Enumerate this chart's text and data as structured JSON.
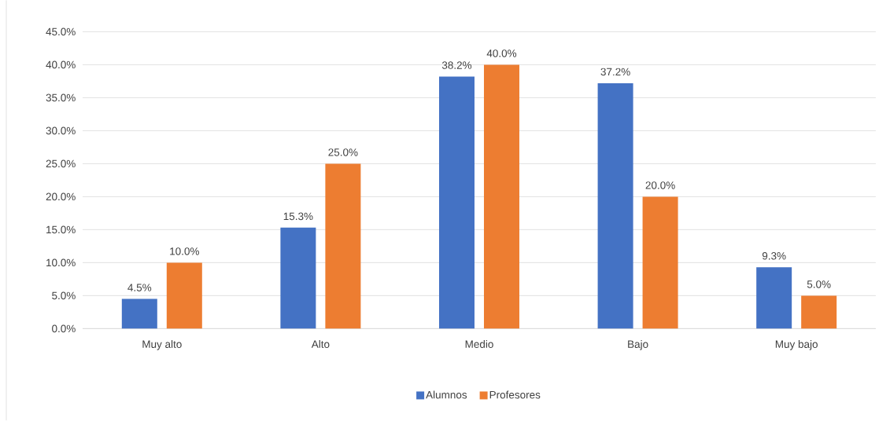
{
  "chart_data": {
    "type": "bar",
    "categories": [
      "Muy alto",
      "Alto",
      "Medio",
      "Bajo",
      "Muy bajo"
    ],
    "series": [
      {
        "name": "Alumnos",
        "color": "#4472c4",
        "values": [
          4.5,
          15.3,
          38.2,
          37.2,
          9.3
        ],
        "value_labels": [
          "4.5%",
          "15.3%",
          "38.2%",
          "37.2%",
          "9.3%"
        ]
      },
      {
        "name": "Profesores",
        "color": "#ed7d31",
        "values": [
          10,
          25,
          40,
          20,
          5
        ],
        "value_labels": [
          "10.0%",
          "25.0%",
          "40.0%",
          "20.0%",
          "5.0%"
        ]
      }
    ],
    "ylim": [
      0,
      45
    ],
    "yticks": [
      {
        "value": 0,
        "label": "0.0%"
      },
      {
        "value": 5,
        "label": "5.0%"
      },
      {
        "value": 10,
        "label": "10.0%"
      },
      {
        "value": 15,
        "label": "15.0%"
      },
      {
        "value": 20,
        "label": "20.0%"
      },
      {
        "value": 25,
        "label": "25.0%"
      },
      {
        "value": 30,
        "label": "30.0%"
      },
      {
        "value": 35,
        "label": "35.0%"
      },
      {
        "value": 40,
        "label": "40.0%"
      },
      {
        "value": 45,
        "label": "45.0%"
      }
    ],
    "grid": "y",
    "legend": "bottom"
  }
}
